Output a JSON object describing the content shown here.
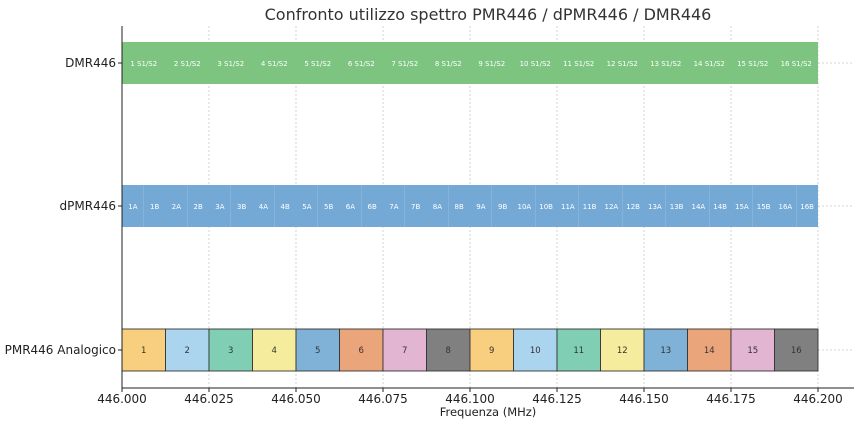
{
  "chart_data": {
    "type": "bar",
    "title": "Confronto utilizzo spettro PMR446 / dPMR446 / DMR446",
    "xlabel": "Frequenza (MHz)",
    "ylabel": "",
    "xlim": [
      446.0,
      446.2
    ],
    "x_ticks": [
      "446.000",
      "446.025",
      "446.050",
      "446.075",
      "446.100",
      "446.125",
      "446.150",
      "446.175",
      "446.200"
    ],
    "grid": true,
    "categories": [
      "DMR446",
      "dPMR446",
      "PMR446 Analogico"
    ],
    "series": [
      {
        "name": "DMR446",
        "channel_width_mhz": 0.0125,
        "color": "#7cc47f",
        "labels": [
          "1 S1/S2",
          "2 S1/S2",
          "3 S1/S2",
          "4 S1/S2",
          "5 S1/S2",
          "6 S1/S2",
          "7 S1/S2",
          "8 S1/S2",
          "9 S1/S2",
          "10 S1/S2",
          "11 S1/S2",
          "12 S1/S2",
          "13 S1/S2",
          "14 S1/S2",
          "15 S1/S2",
          "16 S1/S2"
        ]
      },
      {
        "name": "dPMR446",
        "channel_width_mhz": 0.00625,
        "color": "#74a9d6",
        "labels": [
          "1A",
          "1B",
          "2A",
          "2B",
          "3A",
          "3B",
          "4A",
          "4B",
          "5A",
          "5B",
          "6A",
          "6B",
          "7A",
          "7B",
          "8A",
          "8B",
          "9A",
          "9B",
          "10A",
          "10B",
          "11A",
          "11B",
          "12A",
          "12B",
          "13A",
          "13B",
          "14A",
          "14B",
          "15A",
          "15B",
          "16A",
          "16B"
        ]
      },
      {
        "name": "PMR446 Analogico",
        "channel_width_mhz": 0.0125,
        "labels": [
          "1",
          "2",
          "3",
          "4",
          "5",
          "6",
          "7",
          "8",
          "9",
          "10",
          "11",
          "12",
          "13",
          "14",
          "15",
          "16"
        ],
        "colors": [
          "#f7cf7e",
          "#abd5ef",
          "#80cfb4",
          "#f6ec9e",
          "#7fb2d6",
          "#eba57a",
          "#e2b5d2",
          "#808080",
          "#f7cf7e",
          "#abd5ef",
          "#80cfb4",
          "#f6ec9e",
          "#7fb2d6",
          "#eba57a",
          "#e2b5d2",
          "#808080"
        ]
      }
    ]
  }
}
